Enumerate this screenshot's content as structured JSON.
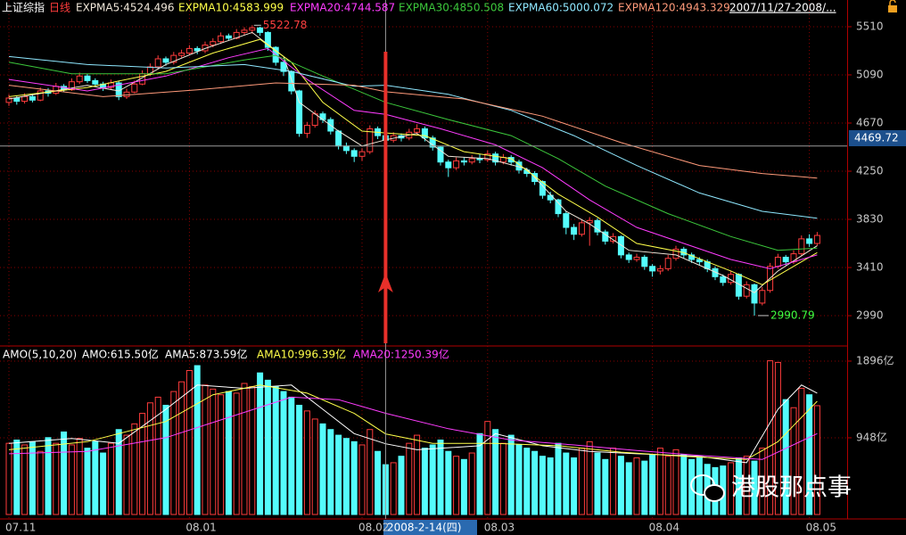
{
  "chart_data": [
    {
      "type": "candlestick",
      "title": "上证综指",
      "period": "日线",
      "date_range": "2007/11/27-2008/...",
      "categories": [
        "07.11",
        null,
        null,
        null,
        null,
        null,
        null,
        null,
        null,
        null,
        null,
        null,
        null,
        null,
        null,
        null,
        null,
        null,
        null,
        null,
        null,
        null,
        null,
        "08.01",
        null,
        null,
        null,
        null,
        null,
        null,
        null,
        null,
        null,
        null,
        null,
        null,
        null,
        null,
        null,
        null,
        null,
        null,
        null,
        null,
        null,
        "08.02",
        null,
        null,
        null,
        null,
        null,
        null,
        null,
        null,
        null,
        null,
        null,
        null,
        null,
        null,
        null,
        "08.03",
        null,
        null,
        null,
        null,
        null,
        null,
        null,
        null,
        null,
        null,
        null,
        null,
        null,
        null,
        null,
        null,
        null,
        null,
        null,
        null,
        "08.04",
        null,
        null,
        null,
        null,
        null,
        null,
        null,
        null,
        null,
        null,
        null,
        null,
        null,
        null,
        null,
        null,
        null,
        null,
        null,
        "08.05",
        null
      ],
      "open": [
        4850,
        4888,
        4860,
        4900,
        4870,
        4950,
        4930,
        4990,
        4960,
        5030,
        5080,
        5040,
        5010,
        4980,
        5020,
        4900,
        4940,
        5010,
        5100,
        5160,
        5230,
        5200,
        5260,
        5280,
        5320,
        5300,
        5350,
        5380,
        5430,
        5410,
        5460,
        5480,
        5500,
        5460,
        5330,
        5200,
        5120,
        4950,
        4580,
        4650,
        4750,
        4700,
        4600,
        4470,
        4430,
        4380,
        4420,
        4620,
        4560,
        4520,
        4560,
        4540,
        4590,
        4620,
        4540,
        4460,
        4330,
        4280,
        4340,
        4330,
        4360,
        4350,
        4400,
        4330,
        4370,
        4330,
        4260,
        4230,
        4160,
        4040,
        4000,
        3880,
        3760,
        3700,
        3800,
        3820,
        3720,
        3640,
        3680,
        3520,
        3480,
        3500,
        3420,
        3380,
        3400,
        3490,
        3570,
        3520,
        3480,
        3460,
        3400,
        3330,
        3280,
        3350,
        3160,
        3260,
        3100,
        3210,
        3420,
        3500,
        3460,
        3530,
        3660,
        3620
      ],
      "high": [
        4920,
        4910,
        4930,
        4925,
        4980,
        4975,
        5020,
        5010,
        5060,
        5110,
        5100,
        5060,
        5030,
        5050,
        5040,
        4970,
        5040,
        5130,
        5190,
        5260,
        5250,
        5290,
        5310,
        5350,
        5340,
        5380,
        5410,
        5460,
        5450,
        5490,
        5505,
        5522.78,
        5510,
        5470,
        5340,
        5220,
        5130,
        4960,
        4680,
        4780,
        4770,
        4720,
        4610,
        4500,
        4450,
        4450,
        4650,
        4640,
        4580,
        4590,
        4580,
        4620,
        4660,
        4640,
        4560,
        4470,
        4350,
        4370,
        4370,
        4390,
        4400,
        4430,
        4420,
        4400,
        4390,
        4350,
        4280,
        4250,
        4170,
        4070,
        4010,
        3900,
        3790,
        3830,
        3850,
        3840,
        3740,
        3710,
        3690,
        3540,
        3530,
        3520,
        3440,
        3430,
        3520,
        3600,
        3590,
        3540,
        3500,
        3480,
        3420,
        3350,
        3380,
        3360,
        3290,
        3270,
        3240,
        3450,
        3530,
        3520,
        3560,
        3690,
        3700,
        3720
      ],
      "low": [
        4820,
        4830,
        4840,
        4850,
        4860,
        4900,
        4915,
        4940,
        4950,
        5010,
        5020,
        4990,
        4950,
        4960,
        4870,
        4880,
        4930,
        5000,
        5080,
        5140,
        5170,
        5180,
        5240,
        5260,
        5270,
        5280,
        5330,
        5360,
        5390,
        5400,
        5440,
        5450,
        5430,
        5300,
        5170,
        5080,
        4920,
        4550,
        4540,
        4630,
        4670,
        4570,
        4440,
        4400,
        4330,
        4340,
        4400,
        4530,
        4490,
        4500,
        4510,
        4520,
        4570,
        4510,
        4430,
        4300,
        4200,
        4260,
        4300,
        4310,
        4320,
        4330,
        4300,
        4310,
        4300,
        4230,
        4200,
        4130,
        4010,
        3970,
        3850,
        3700,
        3650,
        3680,
        3600,
        3690,
        3610,
        3620,
        3490,
        3450,
        3460,
        3390,
        3330,
        3350,
        3380,
        3470,
        3490,
        3450,
        3430,
        3370,
        3300,
        3250,
        3260,
        3130,
        3140,
        2990.79,
        3080,
        3190,
        3400,
        3430,
        3440,
        3510,
        3590,
        3600
      ],
      "close": [
        4888,
        4860,
        4900,
        4870,
        4950,
        4930,
        4990,
        4960,
        5030,
        5080,
        5040,
        5010,
        4980,
        5020,
        4900,
        4940,
        5010,
        5100,
        5160,
        5230,
        5200,
        5260,
        5280,
        5320,
        5300,
        5350,
        5380,
        5430,
        5410,
        5460,
        5480,
        5500,
        5460,
        5330,
        5200,
        5120,
        4950,
        4580,
        4650,
        4750,
        4700,
        4600,
        4470,
        4430,
        4380,
        4420,
        4620,
        4560,
        4520,
        4560,
        4540,
        4590,
        4620,
        4540,
        4460,
        4330,
        4280,
        4340,
        4330,
        4360,
        4350,
        4400,
        4330,
        4370,
        4330,
        4260,
        4230,
        4160,
        4040,
        4000,
        3880,
        3760,
        3700,
        3800,
        3820,
        3720,
        3640,
        3680,
        3520,
        3480,
        3500,
        3420,
        3380,
        3400,
        3490,
        3570,
        3520,
        3480,
        3460,
        3400,
        3330,
        3280,
        3350,
        3160,
        3260,
        3100,
        3210,
        3420,
        3500,
        3460,
        3530,
        3660,
        3620,
        3690
      ],
      "up_color": "#ff3c3c",
      "down_color": "#54fcfc",
      "lines": [
        {
          "label": "EXPMA5:4524.496",
          "color": "#f0e6d8",
          "x": [
            0,
            10,
            14,
            20,
            25,
            31,
            35,
            37,
            42,
            45,
            48,
            52,
            56,
            61,
            66,
            71,
            74,
            79,
            85,
            91,
            95,
            98,
            103
          ],
          "values": [
            4880,
            5000,
            4950,
            5180,
            5320,
            5460,
            5250,
            4850,
            4600,
            4470,
            4524,
            4580,
            4380,
            4360,
            4270,
            3900,
            3790,
            3560,
            3520,
            3340,
            3190,
            3380,
            3600
          ]
        },
        {
          "label": "EXPMA10:4583.999",
          "color": "#ffff4a",
          "x": [
            0,
            10,
            20,
            26,
            32,
            36,
            40,
            45,
            48,
            53,
            58,
            64,
            70,
            75,
            80,
            86,
            92,
            96,
            100,
            103
          ],
          "values": [
            4900,
            4980,
            5120,
            5280,
            5400,
            5200,
            4850,
            4600,
            4584,
            4560,
            4420,
            4360,
            4050,
            3850,
            3620,
            3540,
            3380,
            3260,
            3420,
            3540
          ]
        },
        {
          "label": "EXPMA20:4744.587",
          "color": "#ff3cff",
          "x": [
            0,
            10,
            20,
            28,
            33,
            38,
            44,
            48,
            55,
            62,
            68,
            74,
            80,
            86,
            92,
            97,
            103
          ],
          "values": [
            5050,
            4950,
            5080,
            5240,
            5320,
            5050,
            4780,
            4745,
            4620,
            4480,
            4280,
            4000,
            3760,
            3620,
            3480,
            3400,
            3520
          ]
        },
        {
          "label": "EXPMA30:4850.508",
          "color": "#3cc83c",
          "x": [
            0,
            8,
            20,
            30,
            34,
            40,
            48,
            56,
            64,
            70,
            76,
            84,
            92,
            98,
            103
          ],
          "values": [
            5200,
            5100,
            5100,
            5220,
            5260,
            5080,
            4850,
            4700,
            4560,
            4360,
            4120,
            3880,
            3680,
            3560,
            3580
          ]
        },
        {
          "label": "EXPMA60:5000.072",
          "color": "#8fe8ff",
          "x": [
            0,
            10,
            20,
            30,
            36,
            44,
            48,
            56,
            64,
            72,
            80,
            88,
            96,
            103
          ],
          "values": [
            5250,
            5180,
            5150,
            5180,
            5120,
            4990,
            5000,
            4920,
            4780,
            4560,
            4300,
            4060,
            3900,
            3840
          ]
        },
        {
          "label": "EXPMA120:4943.329",
          "color": "#ff9a7a",
          "x": [
            0,
            12,
            24,
            34,
            44,
            48,
            58,
            68,
            78,
            88,
            96,
            103
          ],
          "values": [
            5000,
            4900,
            4960,
            5020,
            5000,
            4943,
            4880,
            4730,
            4500,
            4300,
            4230,
            4190
          ]
        }
      ],
      "ylim": [
        2726,
        5743
      ],
      "yticks": [
        5510,
        5090,
        4670,
        4250,
        3830,
        3410,
        2990
      ],
      "cursor_label": "2008-2-14(四)",
      "cursor_price": 4469.72,
      "grid": true
    },
    {
      "type": "bar",
      "title": "AMO(5,10,20)",
      "amo_label": "AMO:615.50亿",
      "values": [
        880,
        920,
        860,
        900,
        780,
        950,
        880,
        1020,
        860,
        940,
        820,
        900,
        760,
        880,
        1050,
        980,
        1120,
        1250,
        1380,
        1450,
        1350,
        1520,
        1640,
        1780,
        1840,
        1600,
        1550,
        1480,
        1520,
        1500,
        1620,
        1580,
        1750,
        1660,
        1580,
        1520,
        1450,
        1350,
        1280,
        1180,
        1120,
        1050,
        980,
        940,
        900,
        860,
        1050,
        780,
        615.5,
        640,
        720,
        880,
        980,
        820,
        860,
        920,
        780,
        720,
        680,
        760,
        1000,
        1150,
        1050,
        880,
        980,
        860,
        820,
        780,
        720,
        700,
        880,
        760,
        700,
        820,
        900,
        760,
        680,
        820,
        720,
        640,
        700,
        660,
        740,
        820,
        720,
        800,
        740,
        680,
        700,
        620,
        580,
        600,
        640,
        700,
        720,
        660,
        820,
        1900,
        1880,
        1420,
        1320,
        1560,
        1480,
        1345
      ],
      "lines": [
        {
          "label": "AMA5:873.59亿",
          "color": "#ffffff",
          "x": [
            0,
            8,
            14,
            20,
            24,
            30,
            36,
            40,
            44,
            48,
            52,
            60,
            62,
            68,
            74,
            80,
            88,
            94,
            98,
            101,
            103
          ],
          "values": [
            880,
            940,
            880,
            1300,
            1600,
            1560,
            1600,
            1300,
            1000,
            873.59,
            800,
            850,
            1000,
            850,
            780,
            750,
            720,
            640,
            1300,
            1600,
            1500
          ]
        },
        {
          "label": "AMA10:996.39亿",
          "color": "#ffff4a",
          "x": [
            0,
            10,
            20,
            26,
            32,
            38,
            44,
            48,
            54,
            62,
            70,
            78,
            86,
            94,
            98,
            103
          ],
          "values": [
            800,
            900,
            1150,
            1480,
            1600,
            1500,
            1250,
            996.39,
            880,
            880,
            850,
            770,
            720,
            680,
            900,
            1400
          ]
        },
        {
          "label": "AMA20:1250.39亿",
          "color": "#ff3cff",
          "x": [
            0,
            10,
            20,
            28,
            36,
            42,
            48,
            56,
            64,
            72,
            80,
            88,
            96,
            103
          ],
          "values": [
            750,
            780,
            950,
            1200,
            1450,
            1420,
            1250.39,
            1060,
            920,
            860,
            790,
            730,
            680,
            1000
          ]
        }
      ],
      "ylim": [
        0,
        2083
      ],
      "yticks": [
        {
          "value": 1896,
          "label": "1896亿"
        },
        {
          "value": 948,
          "label": "948亿"
        }
      ],
      "grid": true
    }
  ],
  "watermark": "港股那点事"
}
